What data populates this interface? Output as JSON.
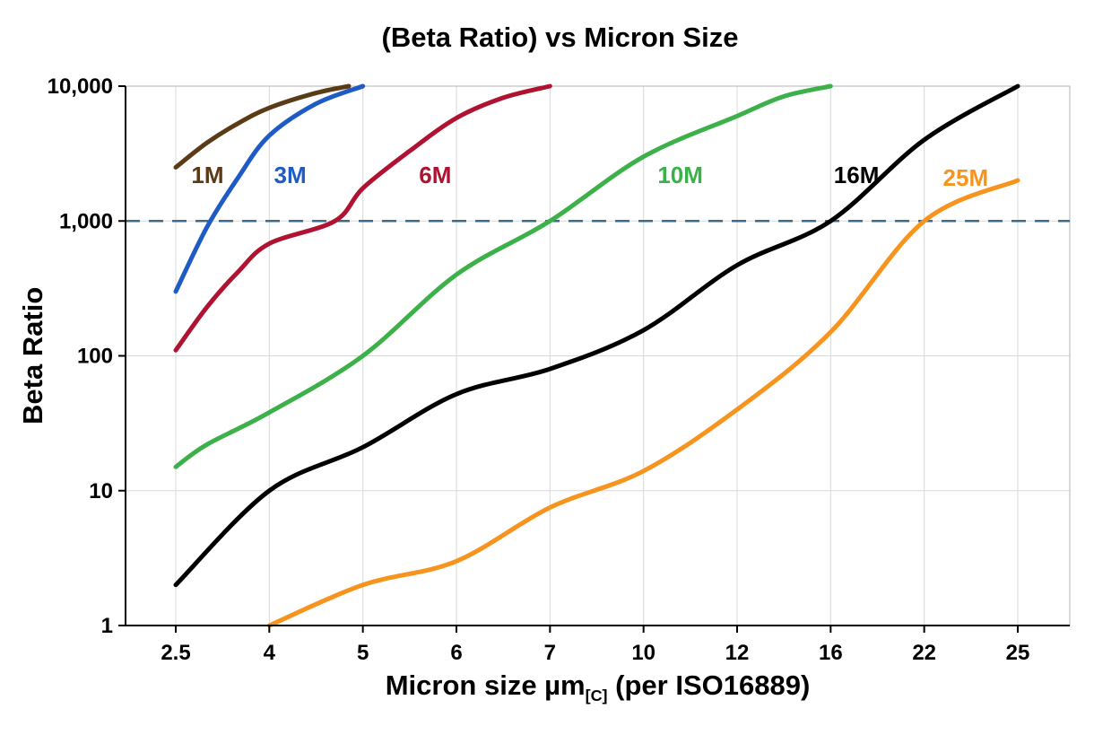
{
  "chart_data": {
    "type": "line",
    "title": "(Beta Ratio) vs Micron Size",
    "ylabel": "Beta Ratio",
    "xlabel_parts": {
      "pre": "Micron size µm",
      "sub": "[C]",
      "post": " (per ISO16889)"
    },
    "x_scale": "categorical",
    "x_ticks": [
      2.5,
      4,
      5,
      6,
      7,
      10,
      12,
      16,
      22,
      25
    ],
    "x_tick_labels": [
      "2.5",
      "4",
      "5",
      "6",
      "7",
      "10",
      "12",
      "16",
      "22",
      "25"
    ],
    "y_scale": "log",
    "ylim": [
      1,
      10000
    ],
    "y_ticks": [
      1,
      10,
      100,
      1000,
      10000
    ],
    "y_tick_labels": [
      "1",
      "10",
      "100",
      "1,000",
      "10,000"
    ],
    "grid": true,
    "grid_color": "#d8d8d8",
    "reference_line": {
      "y": 1000,
      "color": "#3c6b90",
      "style": "dashed"
    },
    "legend_position": "inline-labels",
    "series": [
      {
        "name": "1M",
        "color": "#5b3a16",
        "label_x": 2.75,
        "label_y": 2200,
        "points": [
          [
            2.5,
            2500
          ],
          [
            3,
            3800
          ],
          [
            3.5,
            5300
          ],
          [
            4,
            6900
          ],
          [
            4.5,
            8900
          ],
          [
            4.85,
            10000
          ]
        ]
      },
      {
        "name": "3M",
        "color": "#1f5bc4",
        "label_x": 4.05,
        "label_y": 2200,
        "points": [
          [
            2.5,
            300
          ],
          [
            3,
            900
          ],
          [
            3.5,
            2100
          ],
          [
            4,
            4300
          ],
          [
            4.5,
            7400
          ],
          [
            5,
            10000
          ]
        ]
      },
      {
        "name": "6M",
        "color": "#b01231",
        "label_x": 5.6,
        "label_y": 2200,
        "points": [
          [
            2.5,
            110
          ],
          [
            3,
            230
          ],
          [
            3.5,
            420
          ],
          [
            4,
            680
          ],
          [
            4.7,
            1000
          ],
          [
            5,
            1750
          ],
          [
            5.5,
            3300
          ],
          [
            6,
            5800
          ],
          [
            6.5,
            8200
          ],
          [
            7,
            10000
          ]
        ]
      },
      {
        "name": "10M",
        "color": "#3cb14a",
        "label_x": 10.3,
        "label_y": 2200,
        "points": [
          [
            2.5,
            15
          ],
          [
            3,
            22
          ],
          [
            4,
            38
          ],
          [
            5,
            100
          ],
          [
            6,
            400
          ],
          [
            7,
            1000
          ],
          [
            10,
            3000
          ],
          [
            12,
            6000
          ],
          [
            14,
            8400
          ],
          [
            16,
            10000
          ]
        ]
      },
      {
        "name": "16M",
        "color": "#000000",
        "label_x": 16.2,
        "label_y": 2200,
        "points": [
          [
            2.5,
            2
          ],
          [
            4,
            10
          ],
          [
            5,
            21
          ],
          [
            6,
            52
          ],
          [
            7,
            80
          ],
          [
            10,
            155
          ],
          [
            12,
            470
          ],
          [
            16,
            1000
          ],
          [
            22,
            4000
          ],
          [
            25,
            10000
          ]
        ]
      },
      {
        "name": "25M",
        "color": "#f7941e",
        "label_x": 22.6,
        "label_y": 2100,
        "points": [
          [
            4,
            1
          ],
          [
            5,
            2
          ],
          [
            6,
            3
          ],
          [
            7,
            7.5
          ],
          [
            10,
            14
          ],
          [
            12,
            40
          ],
          [
            16,
            150
          ],
          [
            22,
            1000
          ],
          [
            25,
            2000
          ]
        ]
      }
    ]
  }
}
